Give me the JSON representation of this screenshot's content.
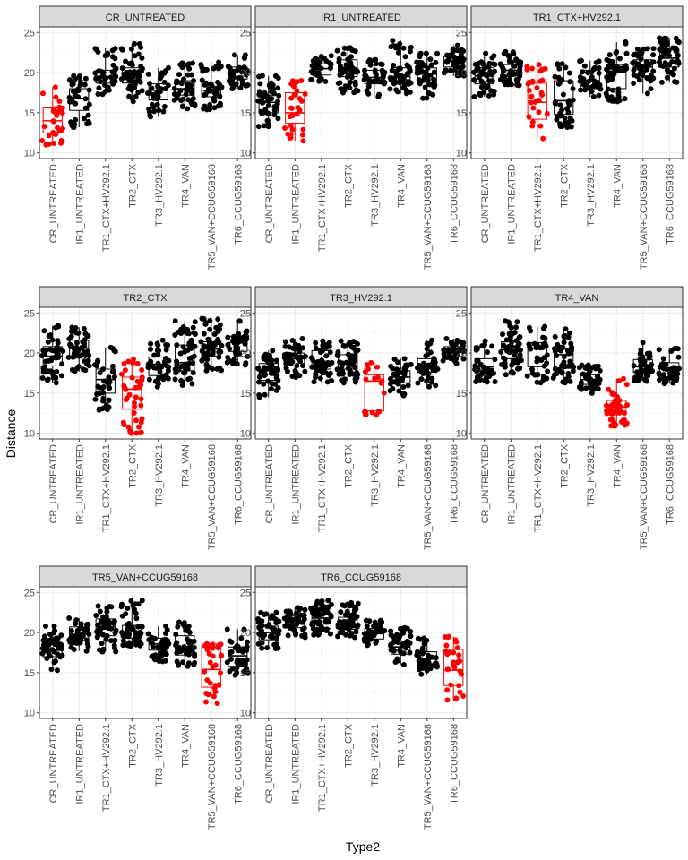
{
  "chart_data": {
    "type": "box-jitter",
    "xlabel": "Type2",
    "ylabel": "Distance",
    "categories": [
      "CR_UNTREATED",
      "IR1_UNTREATED",
      "TR1_CTX+HV292.1",
      "TR2_CTX",
      "TR3_HV292.1",
      "TR4_VAN",
      "TR5_VAN+CCUG59168",
      "TR6_CCUG59168"
    ],
    "y_ticks": [
      "10",
      "15",
      "20",
      "25"
    ],
    "ylim": [
      9.3,
      25.7
    ],
    "highlight_color": "#ff0000",
    "point_color": "#000000",
    "grid": true,
    "panels": [
      {
        "title": "CR_UNTREATED",
        "highlight": "CR_UNTREATED",
        "boxes": [
          {
            "category": "CR_UNTREATED",
            "min": 11.0,
            "q1": 12.5,
            "median": 14.0,
            "q3": 15.6,
            "max": 18.2,
            "n": 30
          },
          {
            "category": "IR1_UNTREATED",
            "min": 13.2,
            "q1": 15.3,
            "median": 16.8,
            "q3": 18.0,
            "max": 19.6,
            "n": 40
          },
          {
            "category": "TR1_CTX+HV292.1",
            "min": 17.3,
            "q1": 18.7,
            "median": 19.5,
            "q3": 20.3,
            "max": 23.0,
            "n": 40
          },
          {
            "category": "TR2_CTX",
            "min": 16.4,
            "q1": 18.7,
            "median": 19.6,
            "q3": 20.6,
            "max": 23.6,
            "n": 55
          },
          {
            "category": "TR3_HV292.1",
            "min": 14.5,
            "q1": 16.6,
            "median": 17.8,
            "q3": 18.6,
            "max": 20.6,
            "n": 40
          },
          {
            "category": "TR4_VAN",
            "min": 15.5,
            "q1": 17.2,
            "median": 18.0,
            "q3": 19.0,
            "max": 21.2,
            "n": 45
          },
          {
            "category": "TR5_VAN+CCUG59168",
            "min": 15.4,
            "q1": 17.0,
            "median": 17.8,
            "q3": 18.8,
            "max": 21.3,
            "n": 45
          },
          {
            "category": "TR6_CCUG59168",
            "min": 18.0,
            "q1": 19.2,
            "median": 20.2,
            "q3": 20.7,
            "max": 22.2,
            "n": 40
          }
        ]
      },
      {
        "title": "IR1_UNTREATED",
        "highlight": "IR1_UNTREATED",
        "boxes": [
          {
            "category": "CR_UNTREATED",
            "min": 13.3,
            "q1": 15.0,
            "median": 16.3,
            "q3": 17.2,
            "max": 19.6,
            "n": 50
          },
          {
            "category": "IR1_UNTREATED",
            "min": 11.5,
            "q1": 13.7,
            "median": 15.0,
            "q3": 17.5,
            "max": 19.0,
            "n": 30
          },
          {
            "category": "TR1_CTX+HV292.1",
            "min": 18.9,
            "q1": 19.7,
            "median": 20.5,
            "q3": 21.1,
            "max": 22.1,
            "n": 40
          },
          {
            "category": "TR2_CTX",
            "min": 17.5,
            "q1": 19.5,
            "median": 20.6,
            "q3": 21.6,
            "max": 23.1,
            "n": 50
          },
          {
            "category": "TR3_HV292.1",
            "min": 17.0,
            "q1": 18.6,
            "median": 19.4,
            "q3": 20.3,
            "max": 21.6,
            "n": 40
          },
          {
            "category": "TR4_VAN",
            "min": 17.4,
            "q1": 18.7,
            "median": 19.5,
            "q3": 20.6,
            "max": 24.0,
            "n": 55
          },
          {
            "category": "TR5_VAN+CCUG59168",
            "min": 16.8,
            "q1": 18.8,
            "median": 19.8,
            "q3": 20.6,
            "max": 22.4,
            "n": 45
          },
          {
            "category": "TR6_CCUG59168",
            "min": 19.6,
            "q1": 20.7,
            "median": 21.4,
            "q3": 22.0,
            "max": 23.4,
            "n": 45
          }
        ]
      },
      {
        "title": "TR1_CTX+HV292.1",
        "highlight": "TR1_CTX+HV292.1",
        "boxes": [
          {
            "category": "CR_UNTREATED",
            "min": 17.0,
            "q1": 18.6,
            "median": 19.6,
            "q3": 20.6,
            "max": 22.4,
            "n": 45
          },
          {
            "category": "IR1_UNTREATED",
            "min": 18.4,
            "q1": 19.6,
            "median": 20.3,
            "q3": 21.0,
            "max": 22.6,
            "n": 50
          },
          {
            "category": "TR1_CTX+HV292.1",
            "min": 11.8,
            "q1": 14.2,
            "median": 16.3,
            "q3": 18.7,
            "max": 21.0,
            "n": 30
          },
          {
            "category": "TR2_CTX",
            "min": 13.2,
            "q1": 14.8,
            "median": 16.5,
            "q3": 19.0,
            "max": 21.1,
            "n": 40
          },
          {
            "category": "TR3_HV292.1",
            "min": 17.0,
            "q1": 18.0,
            "median": 19.0,
            "q3": 20.3,
            "max": 21.5,
            "n": 35
          },
          {
            "category": "TR4_VAN",
            "min": 16.4,
            "q1": 18.0,
            "median": 20.1,
            "q3": 21.0,
            "max": 23.8,
            "n": 50
          },
          {
            "category": "TR5_VAN+CCUG59168",
            "min": 17.4,
            "q1": 19.6,
            "median": 20.7,
            "q3": 21.6,
            "max": 23.0,
            "n": 45
          },
          {
            "category": "TR6_CCUG59168",
            "min": 18.8,
            "q1": 20.7,
            "median": 21.8,
            "q3": 22.9,
            "max": 24.3,
            "n": 50
          }
        ]
      },
      {
        "title": "TR2_CTX",
        "highlight": "TR2_CTX",
        "boxes": [
          {
            "category": "CR_UNTREATED",
            "min": 16.3,
            "q1": 18.4,
            "median": 19.6,
            "q3": 20.8,
            "max": 23.4,
            "n": 50
          },
          {
            "category": "IR1_UNTREATED",
            "min": 17.7,
            "q1": 19.6,
            "median": 20.6,
            "q3": 21.6,
            "max": 23.2,
            "n": 55
          },
          {
            "category": "TR1_CTX+HV292.1",
            "min": 12.9,
            "q1": 15.0,
            "median": 16.7,
            "q3": 18.0,
            "max": 20.7,
            "n": 40
          },
          {
            "category": "TR2_CTX",
            "min": 10.0,
            "q1": 13.0,
            "median": 15.5,
            "q3": 17.0,
            "max": 19.2,
            "n": 40
          },
          {
            "category": "TR3_HV292.1",
            "min": 15.8,
            "q1": 17.2,
            "median": 18.6,
            "q3": 19.5,
            "max": 21.6,
            "n": 40
          },
          {
            "category": "TR4_VAN",
            "min": 16.0,
            "q1": 17.8,
            "median": 18.8,
            "q3": 21.0,
            "max": 24.0,
            "n": 55
          },
          {
            "category": "TR5_VAN+CCUG59168",
            "min": 17.8,
            "q1": 19.6,
            "median": 20.5,
            "q3": 21.4,
            "max": 24.3,
            "n": 50
          },
          {
            "category": "TR6_CCUG59168",
            "min": 18.5,
            "q1": 20.2,
            "median": 21.3,
            "q3": 22.1,
            "max": 24.0,
            "n": 50
          }
        ]
      },
      {
        "title": "TR3_HV292.1",
        "highlight": "TR3_HV292.1",
        "boxes": [
          {
            "category": "CR_UNTREATED",
            "min": 14.5,
            "q1": 16.6,
            "median": 17.8,
            "q3": 18.7,
            "max": 20.3,
            "n": 45
          },
          {
            "category": "IR1_UNTREATED",
            "min": 17.0,
            "q1": 18.4,
            "median": 19.3,
            "q3": 20.0,
            "max": 21.8,
            "n": 45
          },
          {
            "category": "TR1_CTX+HV292.1",
            "min": 16.4,
            "q1": 18.0,
            "median": 18.9,
            "q3": 20.3,
            "max": 21.5,
            "n": 50
          },
          {
            "category": "TR2_CTX",
            "min": 16.3,
            "q1": 18.0,
            "median": 18.8,
            "q3": 19.8,
            "max": 21.5,
            "n": 50
          },
          {
            "category": "TR3_HV292.1",
            "min": 12.3,
            "q1": 12.8,
            "median": 16.5,
            "q3": 17.3,
            "max": 18.8,
            "n": 20
          },
          {
            "category": "TR4_VAN",
            "min": 14.7,
            "q1": 16.3,
            "median": 17.0,
            "q3": 17.8,
            "max": 19.3,
            "n": 40
          },
          {
            "category": "TR5_VAN+CCUG59168",
            "min": 15.8,
            "q1": 17.6,
            "median": 18.4,
            "q3": 19.3,
            "max": 21.6,
            "n": 40
          },
          {
            "category": "TR6_CCUG59168",
            "min": 18.7,
            "q1": 19.6,
            "median": 20.1,
            "q3": 20.8,
            "max": 21.8,
            "n": 40
          }
        ]
      },
      {
        "title": "TR4_VAN",
        "highlight": "TR4_VAN",
        "boxes": [
          {
            "category": "CR_UNTREATED",
            "min": 16.4,
            "q1": 17.4,
            "median": 18.3,
            "q3": 19.3,
            "max": 21.5,
            "n": 45
          },
          {
            "category": "IR1_UNTREATED",
            "min": 17.3,
            "q1": 19.3,
            "median": 20.4,
            "q3": 21.4,
            "max": 24.0,
            "n": 55
          },
          {
            "category": "TR1_CTX+HV292.1",
            "min": 16.3,
            "q1": 18.3,
            "median": 20.6,
            "q3": 21.3,
            "max": 23.3,
            "n": 40
          },
          {
            "category": "TR2_CTX",
            "min": 16.3,
            "q1": 18.1,
            "median": 19.8,
            "q3": 20.6,
            "max": 23.0,
            "n": 50
          },
          {
            "category": "TR3_HV292.1",
            "min": 15.0,
            "q1": 16.1,
            "median": 16.7,
            "q3": 17.3,
            "max": 18.5,
            "n": 40
          },
          {
            "category": "TR4_VAN",
            "min": 10.9,
            "q1": 12.4,
            "median": 13.3,
            "q3": 14.1,
            "max": 16.8,
            "n": 50
          },
          {
            "category": "TR5_VAN+CCUG59168",
            "min": 16.5,
            "q1": 17.6,
            "median": 18.3,
            "q3": 19.2,
            "max": 21.3,
            "n": 40
          },
          {
            "category": "TR6_CCUG59168",
            "min": 16.2,
            "q1": 17.4,
            "median": 18.1,
            "q3": 18.8,
            "max": 20.6,
            "n": 45
          }
        ]
      },
      {
        "title": "TR5_VAN+CCUG59168",
        "highlight": "TR5_VAN+CCUG59168",
        "boxes": [
          {
            "category": "CR_UNTREATED",
            "min": 15.3,
            "q1": 17.0,
            "median": 17.8,
            "q3": 18.6,
            "max": 20.8,
            "n": 45
          },
          {
            "category": "IR1_UNTREATED",
            "min": 17.7,
            "q1": 19.0,
            "median": 19.8,
            "q3": 20.7,
            "max": 21.8,
            "n": 45
          },
          {
            "category": "TR1_CTX+HV292.1",
            "min": 17.6,
            "q1": 19.6,
            "median": 20.7,
            "q3": 21.7,
            "max": 23.3,
            "n": 45
          },
          {
            "category": "TR2_CTX",
            "min": 18.3,
            "q1": 19.3,
            "median": 20.1,
            "q3": 20.9,
            "max": 24.0,
            "n": 55
          },
          {
            "category": "TR3_HV292.1",
            "min": 16.4,
            "q1": 17.8,
            "median": 18.6,
            "q3": 19.3,
            "max": 20.8,
            "n": 40
          },
          {
            "category": "TR4_VAN",
            "min": 15.8,
            "q1": 17.2,
            "median": 18.2,
            "q3": 19.6,
            "max": 21.3,
            "n": 45
          },
          {
            "category": "TR5_VAN+CCUG59168",
            "min": 11.2,
            "q1": 13.2,
            "median": 15.4,
            "q3": 18.2,
            "max": 18.6,
            "n": 30
          },
          {
            "category": "TR6_CCUG59168",
            "min": 14.7,
            "q1": 15.8,
            "median": 17.1,
            "q3": 18.2,
            "max": 20.4,
            "n": 40
          }
        ]
      },
      {
        "title": "TR6_CCUG59168",
        "highlight": "TR6_CCUG59168",
        "boxes": [
          {
            "category": "CR_UNTREATED",
            "min": 18.0,
            "q1": 19.1,
            "median": 20.0,
            "q3": 20.8,
            "max": 22.5,
            "n": 45
          },
          {
            "category": "IR1_UNTREATED",
            "min": 19.4,
            "q1": 20.6,
            "median": 21.4,
            "q3": 22.1,
            "max": 23.1,
            "n": 45
          },
          {
            "category": "TR1_CTX+HV292.1",
            "min": 19.7,
            "q1": 20.5,
            "median": 21.8,
            "q3": 23.0,
            "max": 24.0,
            "n": 55
          },
          {
            "category": "TR2_CTX",
            "min": 19.4,
            "q1": 20.4,
            "median": 21.1,
            "q3": 21.9,
            "max": 23.7,
            "n": 50
          },
          {
            "category": "TR3_HV292.1",
            "min": 18.4,
            "q1": 19.2,
            "median": 19.9,
            "q3": 20.5,
            "max": 21.5,
            "n": 40
          },
          {
            "category": "TR4_VAN",
            "min": 16.0,
            "q1": 17.3,
            "median": 18.2,
            "q3": 18.9,
            "max": 20.6,
            "n": 45
          },
          {
            "category": "TR5_VAN+CCUG59168",
            "min": 14.8,
            "q1": 15.8,
            "median": 16.7,
            "q3": 17.6,
            "max": 19.3,
            "n": 45
          },
          {
            "category": "TR6_CCUG59168",
            "min": 11.6,
            "q1": 13.4,
            "median": 15.3,
            "q3": 17.9,
            "max": 19.5,
            "n": 30
          }
        ]
      }
    ]
  }
}
